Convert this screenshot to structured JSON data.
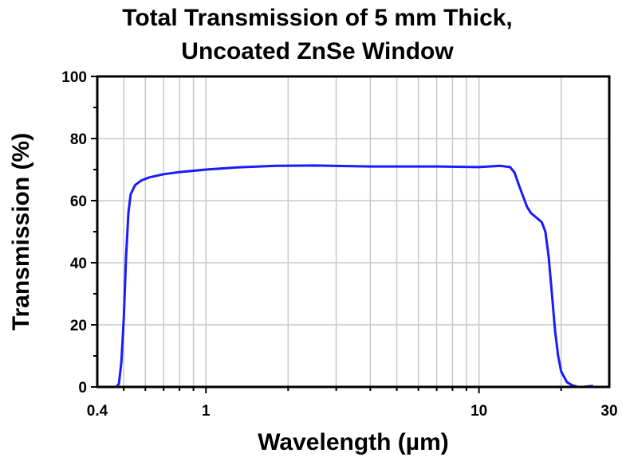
{
  "chart_data": {
    "type": "line",
    "title_line1": "Total Transmission of 5 mm Thick,",
    "title_line2": "Uncoated ZnSe Window",
    "xlabel": "Wavelength (µm)",
    "ylabel": "Transmission (%)",
    "xscale": "log",
    "xlim": [
      0.4,
      30
    ],
    "ylim": [
      0,
      100
    ],
    "xticks": [
      {
        "value": 0.4,
        "label": "0.4"
      },
      {
        "value": 1,
        "label": "1"
      },
      {
        "value": 10,
        "label": "10"
      },
      {
        "value": 30,
        "label": "30"
      }
    ],
    "yticks": [
      {
        "value": 0,
        "label": "0"
      },
      {
        "value": 20,
        "label": "20"
      },
      {
        "value": 40,
        "label": "40"
      },
      {
        "value": 60,
        "label": "60"
      },
      {
        "value": 80,
        "label": "80"
      },
      {
        "value": 100,
        "label": "100"
      }
    ],
    "grid": true,
    "line_color": "#1a1aff",
    "series": [
      {
        "x": [
          0.4,
          0.47,
          0.48,
          0.49,
          0.5,
          0.51,
          0.52,
          0.53,
          0.55,
          0.58,
          0.62,
          0.7,
          0.8,
          1.0,
          1.3,
          1.8,
          2.5,
          4.0,
          7.0,
          10.0,
          12.0,
          13.0,
          13.5,
          14.0,
          15.0,
          15.5,
          16.0,
          17.0,
          17.5,
          18.0,
          18.5,
          19.0,
          19.5,
          20.0,
          21.0,
          22.0,
          23.0,
          24.0,
          26.0
        ],
        "y": [
          0,
          0,
          1,
          8,
          22,
          42,
          56,
          62,
          65,
          66.5,
          67.5,
          68.5,
          69.2,
          70,
          70.7,
          71.2,
          71.3,
          71,
          71,
          70.8,
          71.2,
          70.8,
          69,
          65,
          58,
          56,
          55,
          53,
          50,
          42,
          30,
          18,
          10,
          5,
          1.5,
          0.5,
          0,
          0,
          0.3
        ]
      }
    ]
  }
}
